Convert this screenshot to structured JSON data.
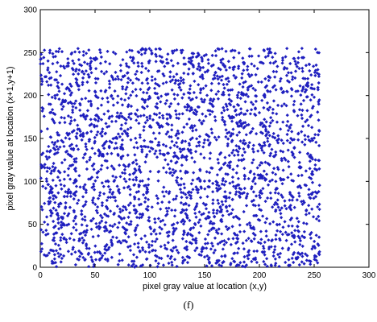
{
  "chart_data": {
    "type": "scatter",
    "title": "",
    "xlabel": "pixel gray value at location (x,y)",
    "ylabel": "pixel gray value at location (x+1,y+1)",
    "xlim": [
      0,
      300
    ],
    "ylim": [
      0,
      300
    ],
    "xticks": [
      0,
      50,
      100,
      150,
      200,
      250,
      300
    ],
    "yticks": [
      0,
      50,
      100,
      150,
      200,
      250,
      300
    ],
    "grid": false,
    "legend": "none",
    "marker": "diamond",
    "color": "#1f1fbf",
    "series": [
      {
        "sampling": "approx-uniform",
        "x_range": [
          0,
          255
        ],
        "y_range": [
          0,
          255
        ],
        "points": [
          [
            12,
            245
          ],
          [
            30,
            230
          ],
          [
            55,
            250
          ],
          [
            80,
            215
          ],
          [
            110,
            240
          ],
          [
            135,
            225
          ],
          [
            160,
            252
          ],
          [
            185,
            210
          ],
          [
            210,
            238
          ],
          [
            240,
            220
          ],
          [
            8,
            190
          ],
          [
            40,
            175
          ],
          [
            65,
            200
          ],
          [
            95,
            185
          ],
          [
            120,
            160
          ],
          [
            150,
            195
          ],
          [
            175,
            170
          ],
          [
            200,
            180
          ],
          [
            225,
            165
          ],
          [
            250,
            198
          ],
          [
            18,
            140
          ],
          [
            45,
            125
          ],
          [
            70,
            150
          ],
          [
            100,
            135
          ],
          [
            128,
            112
          ],
          [
            155,
            145
          ],
          [
            180,
            118
          ],
          [
            205,
            142
          ],
          [
            232,
            128
          ],
          [
            248,
            108
          ],
          [
            5,
            92
          ],
          [
            35,
            78
          ],
          [
            60,
            100
          ],
          [
            88,
            65
          ],
          [
            115,
            88
          ],
          [
            142,
            70
          ],
          [
            168,
            96
          ],
          [
            195,
            60
          ],
          [
            220,
            84
          ],
          [
            245,
            72
          ],
          [
            15,
            40
          ],
          [
            42,
            25
          ],
          [
            68,
            50
          ],
          [
            96,
            18
          ],
          [
            124,
            45
          ],
          [
            150,
            12
          ],
          [
            178,
            38
          ],
          [
            204,
            22
          ],
          [
            230,
            48
          ],
          [
            252,
            8
          ],
          [
            25,
            60
          ],
          [
            50,
            205
          ],
          [
            75,
            110
          ],
          [
            105,
            30
          ],
          [
            140,
            180
          ],
          [
            165,
            55
          ],
          [
            190,
            140
          ],
          [
            215,
            100
          ],
          [
            238,
            190
          ],
          [
            130,
            5
          ]
        ]
      }
    ],
    "caption": "(f)"
  }
}
